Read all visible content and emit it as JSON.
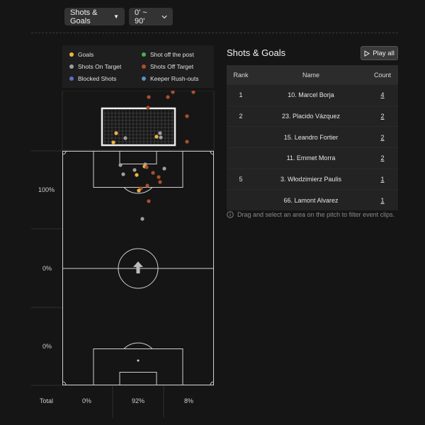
{
  "filters": {
    "event_type": {
      "label": "Shots & Goals",
      "chevron": "caret-down-icon"
    },
    "time_range": {
      "label": "0' ~ 90'",
      "chevron": "chevron-down-icon"
    }
  },
  "legend": [
    {
      "label": "Goals",
      "color": "#f0b43a"
    },
    {
      "label": "Shot off the post",
      "color": "#4caf50"
    },
    {
      "label": "Shots On Target",
      "color": "#9e9e9e"
    },
    {
      "label": "Shots Off Target",
      "color": "#a9502d"
    },
    {
      "label": "Blocked Shots",
      "color": "#5b6ec7"
    },
    {
      "label": "Keeper Rush-outs",
      "color": "#5b8fc2"
    }
  ],
  "zones": {
    "rows": [
      "100%",
      "0%",
      "0%"
    ],
    "total_label": "Total",
    "columns": [
      "0%",
      "92%",
      "8%"
    ]
  },
  "panel": {
    "title": "Shots & Goals",
    "play_all_label": "Play all",
    "columns": {
      "rank": "Rank",
      "name": "Name",
      "count": "Count"
    },
    "rows": [
      {
        "rank": "1",
        "name": "10. Marcel Borja",
        "count": "4"
      },
      {
        "rank": "2",
        "name": "23. Placido Vázquez",
        "count": "2"
      },
      {
        "rank": "",
        "name": "15. Leandro Fortier",
        "count": "2"
      },
      {
        "rank": "",
        "name": "11. Emmet Morra",
        "count": "2"
      },
      {
        "rank": "5",
        "name": "3. Włodzimierz Paulis",
        "count": "1"
      },
      {
        "rank": "",
        "name": "66. Lamont Alvarez",
        "count": "1"
      }
    ],
    "hint": "Drag and select an area on the pitch to filter event clips."
  }
}
